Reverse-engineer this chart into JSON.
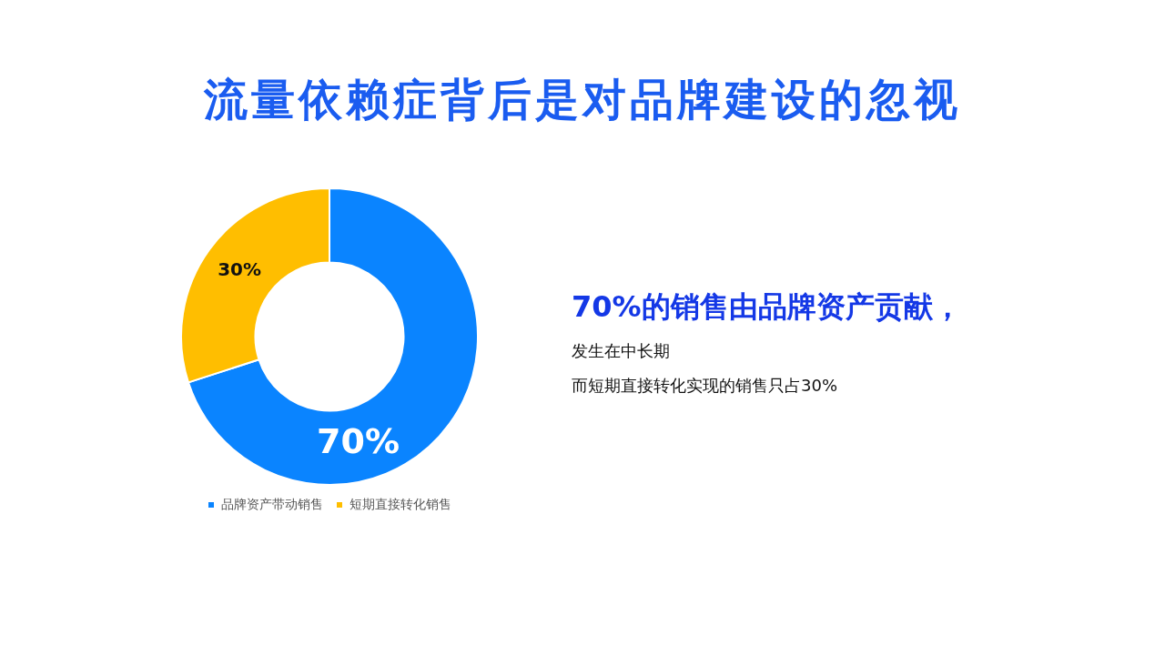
{
  "chart_data": {
    "type": "donut",
    "title": "流量依赖症背后是对品牌建设的忽视",
    "categories": [
      "品牌资产带动销售",
      "短期直接转化销售"
    ],
    "values": [
      70,
      30
    ],
    "colors": [
      "#0a84ff",
      "#ffbe00"
    ],
    "value_labels": [
      "70%",
      "30%"
    ],
    "legend": "bottom",
    "annotations": [
      "70%的销售由品牌资产贡献，",
      "发生在中长期",
      "而短期直接转化实现的销售只占30%"
    ]
  }
}
